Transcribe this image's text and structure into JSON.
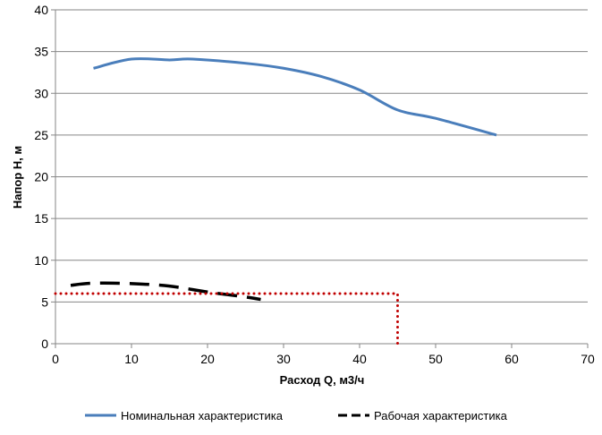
{
  "chart_data": {
    "type": "line",
    "title": "",
    "xlabel": "Расход Q, м3/ч",
    "ylabel": "Напор Н, м",
    "xlim": [
      0,
      70
    ],
    "ylim": [
      0,
      40
    ],
    "xticks": [
      0,
      10,
      20,
      30,
      40,
      50,
      60,
      70
    ],
    "yticks": [
      0,
      5,
      10,
      15,
      20,
      25,
      30,
      35,
      40
    ],
    "grid": "horizontal",
    "legend": "bottom",
    "series": [
      {
        "name": "Номинальная характеристика",
        "color": "#4a7ebb",
        "style": "solid",
        "x": [
          5,
          10,
          15,
          18,
          25,
          30,
          35,
          40,
          45,
          50,
          58
        ],
        "y": [
          33,
          34.1,
          34,
          34.1,
          33.6,
          33,
          32,
          30.4,
          28,
          27,
          25
        ]
      },
      {
        "name": "Рабочая характеристика",
        "color": "#000000",
        "style": "dashed",
        "x": [
          2,
          5,
          10,
          15,
          20,
          25,
          27
        ],
        "y": [
          7,
          7.25,
          7.2,
          6.9,
          6.2,
          5.6,
          5.3
        ]
      },
      {
        "name": "",
        "color": "#c00000",
        "style": "dotted",
        "x": [
          0,
          45,
          45
        ],
        "y": [
          6,
          6,
          0
        ]
      }
    ]
  }
}
